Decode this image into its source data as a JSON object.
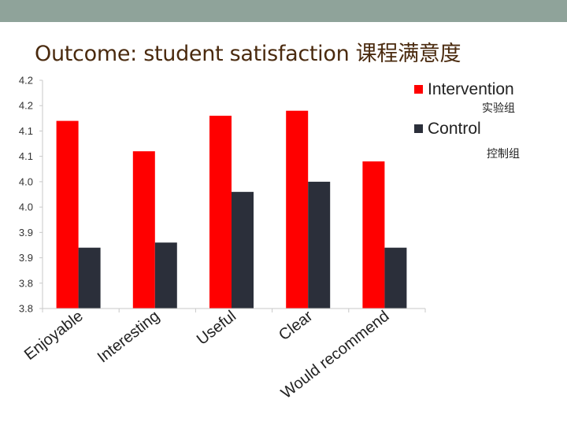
{
  "slide": {
    "title": "Outcome: student satisfaction 课程满意度"
  },
  "colors": {
    "top_band": "#8fa39a",
    "title": "#4a2a0e",
    "intervention": "#ff0000",
    "control": "#2b2f3a",
    "axis": "#c8c8c8",
    "tick_text": "#333333"
  },
  "chart_data": {
    "type": "bar",
    "categories": [
      "Enjoyable",
      "Interesting",
      "Useful",
      "Clear",
      "Would recommend"
    ],
    "series": [
      {
        "name": "Intervention",
        "sublabel": "实验组",
        "color": "#ff0000",
        "values": [
          4.12,
          4.06,
          4.13,
          4.14,
          4.04
        ]
      },
      {
        "name": "Control",
        "sublabel": "控制组",
        "color": "#2b2f3a",
        "values": [
          3.87,
          3.88,
          3.98,
          4.0,
          3.87
        ]
      }
    ],
    "ylim": [
      3.75,
      4.2
    ],
    "yticks": [
      3.75,
      3.8,
      3.85,
      3.9,
      3.95,
      4.0,
      4.05,
      4.1,
      4.15,
      4.2
    ],
    "ytick_labels": [
      "3.8",
      "3.8",
      "3.9",
      "3.9",
      "4.0",
      "4.0",
      "4.1",
      "4.1",
      "4.2",
      "4.2"
    ],
    "title": "",
    "xlabel": "",
    "ylabel": "",
    "grid": false,
    "legend_position": "top-right"
  }
}
